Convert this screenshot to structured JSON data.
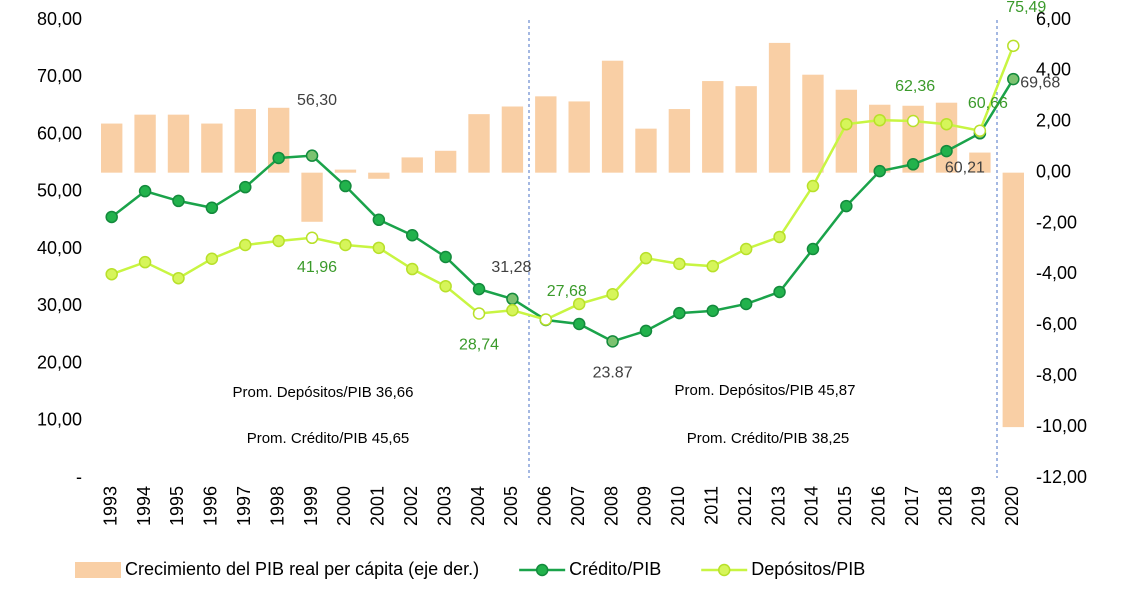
{
  "chart_data": {
    "type": "bar_line",
    "categories": [
      "1993",
      "1994",
      "1995",
      "1996",
      "1997",
      "1998",
      "1999",
      "2000",
      "2001",
      "2002",
      "2003",
      "2004",
      "2005",
      "2006",
      "2007",
      "2008",
      "2009",
      "2010",
      "2011",
      "2012",
      "2013",
      "2014",
      "2015",
      "2016",
      "2017",
      "2018",
      "2019",
      "2020"
    ],
    "series": [
      {
        "name": "Crecimiento del PIB real per cápita (eje der.)",
        "type": "bar",
        "axis": "y2",
        "color": "#f9cfa5",
        "values": [
          1.93,
          2.28,
          2.28,
          1.93,
          2.5,
          2.55,
          -1.93,
          0.12,
          -0.24,
          0.6,
          0.86,
          2.3,
          2.6,
          3.0,
          2.8,
          4.4,
          1.73,
          2.5,
          3.6,
          3.4,
          5.1,
          3.85,
          3.26,
          2.67,
          2.63,
          2.75,
          0.79,
          -10.0
        ]
      },
      {
        "name": "Crédito/PIB",
        "type": "line",
        "color": "#1aa34a",
        "marker_color": "#22b24c",
        "label_color": "#404040",
        "values": [
          45.6,
          50.1,
          48.4,
          47.2,
          50.8,
          55.9,
          56.3,
          51.0,
          45.1,
          42.4,
          38.6,
          33.0,
          31.28,
          27.6,
          26.9,
          23.87,
          25.7,
          28.8,
          29.2,
          30.4,
          32.5,
          40.0,
          47.5,
          53.6,
          54.8,
          57.1,
          60.21,
          69.68
        ],
        "value_labels": [
          null,
          null,
          null,
          null,
          null,
          null,
          "56,30",
          null,
          null,
          null,
          null,
          null,
          "31,28",
          null,
          null,
          "23.87",
          null,
          null,
          null,
          null,
          null,
          null,
          null,
          null,
          null,
          null,
          "60,21",
          "69,68"
        ]
      },
      {
        "name": "Depósitos/PIB",
        "type": "line",
        "color": "#c8f542",
        "marker_color": "#d6f55a",
        "label_color": "#3a9a2a",
        "values": [
          35.6,
          37.7,
          34.9,
          38.3,
          40.7,
          41.4,
          41.96,
          40.7,
          40.2,
          36.5,
          33.5,
          28.74,
          29.3,
          27.68,
          30.4,
          32.1,
          38.4,
          37.4,
          37.0,
          40.0,
          42.1,
          51.0,
          61.8,
          62.5,
          62.36,
          61.8,
          60.66,
          75.49
        ],
        "value_labels": [
          null,
          null,
          null,
          null,
          null,
          null,
          "41,96",
          null,
          null,
          null,
          null,
          "28,74",
          null,
          "27,68",
          null,
          null,
          null,
          null,
          null,
          null,
          null,
          null,
          null,
          null,
          "62,36",
          null,
          "60,66",
          "75,49"
        ]
      }
    ],
    "ylim": [
      0,
      80
    ],
    "yticks": [
      {
        "value": 0,
        "label": "-"
      },
      {
        "value": 10,
        "label": "10,00"
      },
      {
        "value": 20,
        "label": "20,00"
      },
      {
        "value": 30,
        "label": "30,00"
      },
      {
        "value": 40,
        "label": "40,00"
      },
      {
        "value": 50,
        "label": "50,00"
      },
      {
        "value": 60,
        "label": "60,00"
      },
      {
        "value": 70,
        "label": "70,00"
      },
      {
        "value": 80,
        "label": "80,00"
      }
    ],
    "y2lim": [
      -12,
      6
    ],
    "y2ticks": [
      {
        "value": -12,
        "label": "-12,00"
      },
      {
        "value": -10,
        "label": "-10,00"
      },
      {
        "value": -8,
        "label": "-8,00"
      },
      {
        "value": -6,
        "label": "-6,00"
      },
      {
        "value": -4,
        "label": "-4,00"
      },
      {
        "value": -2,
        "label": "-2,00"
      },
      {
        "value": 0,
        "label": "0,00"
      },
      {
        "value": 2,
        "label": "2,00"
      },
      {
        "value": 4,
        "label": "4,00"
      },
      {
        "value": 6,
        "label": "6,00"
      }
    ],
    "annotations": [
      "Prom. Depósitos/PIB 36,66",
      "Prom. Crédito/PIB 45,65",
      "Prom. Depósitos/PIB 45,87",
      "Prom. Crédito/PIB 38,25"
    ],
    "legend": "bottom"
  }
}
